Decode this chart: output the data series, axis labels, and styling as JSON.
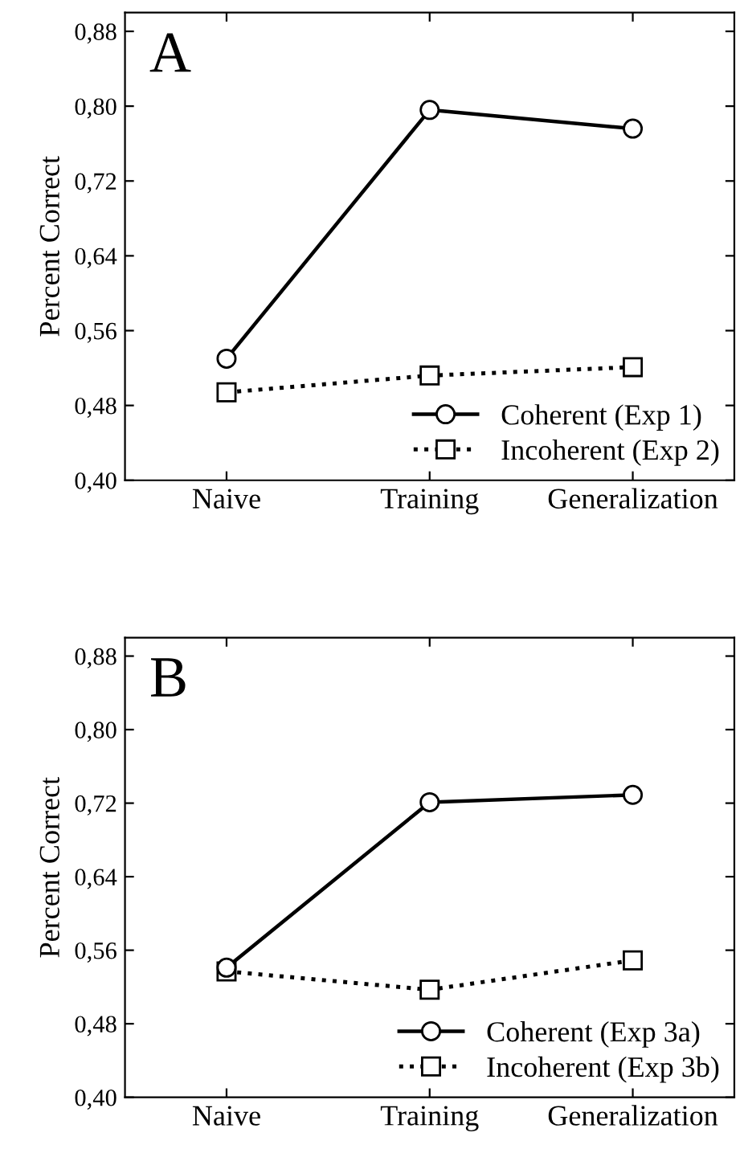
{
  "chart_data": [
    {
      "type": "line",
      "ylabel": "Percent Correct",
      "annotations": [
        "A"
      ],
      "categories": [
        "Naive",
        "Training",
        "Generalization"
      ],
      "series": [
        {
          "name": "Coherent (Exp 1)",
          "color": "#000000",
          "values": [
            0.53,
            0.796,
            0.776
          ],
          "marker": "circle",
          "line_style": "solid"
        },
        {
          "name": "Incoherent (Exp 2)",
          "color": "#000000",
          "values": [
            0.494,
            0.512,
            0.521
          ],
          "marker": "square",
          "line_style": "dotted"
        }
      ],
      "ylim": [
        0.4,
        0.9
      ],
      "yticks": [
        {
          "value": 0.4,
          "label": "0,40"
        },
        {
          "value": 0.48,
          "label": "0,48"
        },
        {
          "value": 0.56,
          "label": "0,56"
        },
        {
          "value": 0.64,
          "label": "0,64"
        },
        {
          "value": 0.72,
          "label": "0,72"
        },
        {
          "value": 0.8,
          "label": "0,80"
        },
        {
          "value": 0.88,
          "label": "0,88"
        }
      ],
      "grid": false,
      "legend": "bottom right"
    },
    {
      "type": "line",
      "ylabel": "Percent Correct",
      "annotations": [
        "B"
      ],
      "categories": [
        "Naive",
        "Training",
        "Generalization"
      ],
      "series": [
        {
          "name": "Coherent (Exp 3a)",
          "color": "#000000",
          "values": [
            0.541,
            0.721,
            0.729
          ],
          "marker": "circle",
          "line_style": "solid"
        },
        {
          "name": "Incoherent (Exp 3b)",
          "color": "#000000",
          "values": [
            0.537,
            0.517,
            0.549
          ],
          "marker": "square",
          "line_style": "dotted"
        }
      ],
      "ylim": [
        0.4,
        0.9
      ],
      "yticks": [
        {
          "value": 0.4,
          "label": "0,40"
        },
        {
          "value": 0.48,
          "label": "0,48"
        },
        {
          "value": 0.56,
          "label": "0,56"
        },
        {
          "value": 0.64,
          "label": "0,64"
        },
        {
          "value": 0.72,
          "label": "0,72"
        },
        {
          "value": 0.8,
          "label": "0,80"
        },
        {
          "value": 0.88,
          "label": "0,88"
        }
      ],
      "grid": false,
      "legend": "bottom right"
    }
  ]
}
